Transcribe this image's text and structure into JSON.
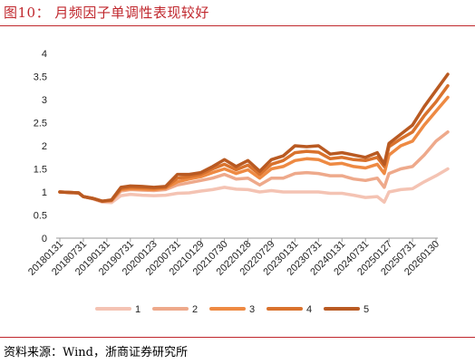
{
  "figure": {
    "title": "图10： 月频因子单调性表现较好",
    "source": "资料来源：Wind，浙商证券研究所"
  },
  "colors": {
    "rule": "#c0272d",
    "series": [
      "#f4c3b3",
      "#eea98b",
      "#ee8a43",
      "#d9722d",
      "#b95a22"
    ]
  },
  "chart_data": {
    "type": "line",
    "title": "",
    "xlabel": "",
    "ylabel": "",
    "ylim": [
      0,
      4
    ],
    "yticks": [
      "0",
      "0.5",
      "1",
      "1.5",
      "2",
      "2.5",
      "3",
      "3.5",
      "4"
    ],
    "xticks": [
      "20180131",
      "20180731",
      "20190131",
      "20190731",
      "20200123",
      "20200731",
      "20210129",
      "20210730",
      "20220128",
      "20220729",
      "20230131",
      "20230731",
      "20240131",
      "20240731",
      "20250127",
      "20250731",
      "20260130"
    ],
    "grid": false,
    "legend_position": "bottom",
    "series": [
      {
        "name": "1",
        "points": [
          [
            0,
            1.0
          ],
          [
            0.4,
            0.98
          ],
          [
            0.8,
            0.97
          ],
          [
            1.0,
            0.9
          ],
          [
            1.4,
            0.85
          ],
          [
            1.8,
            0.78
          ],
          [
            2.2,
            0.77
          ],
          [
            2.6,
            0.92
          ],
          [
            3.0,
            0.95
          ],
          [
            3.5,
            0.93
          ],
          [
            4.0,
            0.92
          ],
          [
            4.5,
            0.93
          ],
          [
            5.0,
            0.97
          ],
          [
            5.5,
            0.98
          ],
          [
            6.0,
            1.02
          ],
          [
            6.5,
            1.05
          ],
          [
            7.0,
            1.1
          ],
          [
            7.5,
            1.06
          ],
          [
            8.0,
            1.05
          ],
          [
            8.5,
            1.0
          ],
          [
            9.0,
            1.03
          ],
          [
            9.5,
            1.0
          ],
          [
            10.0,
            1.0
          ],
          [
            10.5,
            1.0
          ],
          [
            11.0,
            1.0
          ],
          [
            11.5,
            0.97
          ],
          [
            12.0,
            0.97
          ],
          [
            12.5,
            0.93
          ],
          [
            13.0,
            0.88
          ],
          [
            13.5,
            0.9
          ],
          [
            13.8,
            0.78
          ],
          [
            14.0,
            1.0
          ],
          [
            14.5,
            1.05
          ],
          [
            15.0,
            1.07
          ],
          [
            15.5,
            1.22
          ],
          [
            16.0,
            1.35
          ],
          [
            16.5,
            1.5
          ]
        ]
      },
      {
        "name": "2",
        "points": [
          [
            0,
            1.0
          ],
          [
            0.4,
            0.99
          ],
          [
            0.8,
            0.98
          ],
          [
            1.0,
            0.9
          ],
          [
            1.4,
            0.86
          ],
          [
            1.8,
            0.8
          ],
          [
            2.2,
            0.8
          ],
          [
            2.6,
            1.02
          ],
          [
            3.0,
            1.05
          ],
          [
            3.5,
            1.04
          ],
          [
            4.0,
            1.03
          ],
          [
            4.5,
            1.05
          ],
          [
            5.0,
            1.15
          ],
          [
            5.5,
            1.2
          ],
          [
            6.0,
            1.25
          ],
          [
            6.5,
            1.3
          ],
          [
            7.0,
            1.38
          ],
          [
            7.5,
            1.28
          ],
          [
            8.0,
            1.3
          ],
          [
            8.5,
            1.15
          ],
          [
            9.0,
            1.3
          ],
          [
            9.5,
            1.3
          ],
          [
            10.0,
            1.4
          ],
          [
            10.5,
            1.42
          ],
          [
            11.0,
            1.4
          ],
          [
            11.5,
            1.35
          ],
          [
            12.0,
            1.35
          ],
          [
            12.5,
            1.28
          ],
          [
            13.0,
            1.25
          ],
          [
            13.5,
            1.3
          ],
          [
            13.8,
            1.1
          ],
          [
            14.0,
            1.4
          ],
          [
            14.5,
            1.5
          ],
          [
            15.0,
            1.55
          ],
          [
            15.5,
            1.8
          ],
          [
            16.0,
            2.1
          ],
          [
            16.5,
            2.3
          ]
        ]
      },
      {
        "name": "3",
        "points": [
          [
            0,
            1.0
          ],
          [
            0.4,
            0.99
          ],
          [
            0.8,
            0.98
          ],
          [
            1.0,
            0.9
          ],
          [
            1.4,
            0.86
          ],
          [
            1.8,
            0.8
          ],
          [
            2.2,
            0.82
          ],
          [
            2.6,
            1.05
          ],
          [
            3.0,
            1.07
          ],
          [
            3.5,
            1.06
          ],
          [
            4.0,
            1.05
          ],
          [
            4.5,
            1.08
          ],
          [
            5.0,
            1.22
          ],
          [
            5.5,
            1.28
          ],
          [
            6.0,
            1.33
          ],
          [
            6.5,
            1.42
          ],
          [
            7.0,
            1.5
          ],
          [
            7.5,
            1.4
          ],
          [
            8.0,
            1.48
          ],
          [
            8.5,
            1.3
          ],
          [
            9.0,
            1.5
          ],
          [
            9.5,
            1.55
          ],
          [
            10.0,
            1.68
          ],
          [
            10.5,
            1.72
          ],
          [
            11.0,
            1.7
          ],
          [
            11.5,
            1.6
          ],
          [
            12.0,
            1.62
          ],
          [
            12.5,
            1.55
          ],
          [
            13.0,
            1.52
          ],
          [
            13.5,
            1.6
          ],
          [
            13.8,
            1.4
          ],
          [
            14.0,
            1.8
          ],
          [
            14.5,
            2.0
          ],
          [
            15.0,
            2.1
          ],
          [
            15.5,
            2.45
          ],
          [
            16.0,
            2.75
          ],
          [
            16.5,
            3.05
          ]
        ]
      },
      {
        "name": "4",
        "points": [
          [
            0,
            1.0
          ],
          [
            0.4,
            0.99
          ],
          [
            0.8,
            0.98
          ],
          [
            1.0,
            0.9
          ],
          [
            1.4,
            0.86
          ],
          [
            1.8,
            0.8
          ],
          [
            2.2,
            0.82
          ],
          [
            2.6,
            1.07
          ],
          [
            3.0,
            1.1
          ],
          [
            3.5,
            1.09
          ],
          [
            4.0,
            1.08
          ],
          [
            4.5,
            1.1
          ],
          [
            5.0,
            1.3
          ],
          [
            5.5,
            1.33
          ],
          [
            6.0,
            1.38
          ],
          [
            6.5,
            1.5
          ],
          [
            7.0,
            1.6
          ],
          [
            7.5,
            1.48
          ],
          [
            8.0,
            1.58
          ],
          [
            8.5,
            1.38
          ],
          [
            9.0,
            1.6
          ],
          [
            9.5,
            1.68
          ],
          [
            10.0,
            1.85
          ],
          [
            10.5,
            1.88
          ],
          [
            11.0,
            1.86
          ],
          [
            11.5,
            1.72
          ],
          [
            12.0,
            1.75
          ],
          [
            12.5,
            1.7
          ],
          [
            13.0,
            1.68
          ],
          [
            13.5,
            1.75
          ],
          [
            13.8,
            1.55
          ],
          [
            14.0,
            1.98
          ],
          [
            14.5,
            2.15
          ],
          [
            15.0,
            2.3
          ],
          [
            15.5,
            2.65
          ],
          [
            16.0,
            2.95
          ],
          [
            16.5,
            3.3
          ]
        ]
      },
      {
        "name": "5",
        "points": [
          [
            0,
            1.0
          ],
          [
            0.4,
            0.99
          ],
          [
            0.8,
            0.98
          ],
          [
            1.0,
            0.9
          ],
          [
            1.4,
            0.86
          ],
          [
            1.8,
            0.8
          ],
          [
            2.2,
            0.83
          ],
          [
            2.6,
            1.1
          ],
          [
            3.0,
            1.13
          ],
          [
            3.5,
            1.12
          ],
          [
            4.0,
            1.1
          ],
          [
            4.5,
            1.12
          ],
          [
            5.0,
            1.38
          ],
          [
            5.5,
            1.38
          ],
          [
            6.0,
            1.42
          ],
          [
            6.5,
            1.55
          ],
          [
            7.0,
            1.7
          ],
          [
            7.5,
            1.55
          ],
          [
            8.0,
            1.68
          ],
          [
            8.5,
            1.45
          ],
          [
            9.0,
            1.7
          ],
          [
            9.5,
            1.78
          ],
          [
            10.0,
            2.0
          ],
          [
            10.5,
            1.98
          ],
          [
            11.0,
            2.0
          ],
          [
            11.5,
            1.82
          ],
          [
            12.0,
            1.85
          ],
          [
            12.5,
            1.8
          ],
          [
            13.0,
            1.75
          ],
          [
            13.5,
            1.85
          ],
          [
            13.8,
            1.6
          ],
          [
            14.0,
            2.05
          ],
          [
            14.5,
            2.25
          ],
          [
            15.0,
            2.45
          ],
          [
            15.5,
            2.85
          ],
          [
            16.0,
            3.2
          ],
          [
            16.5,
            3.55
          ]
        ]
      }
    ]
  }
}
